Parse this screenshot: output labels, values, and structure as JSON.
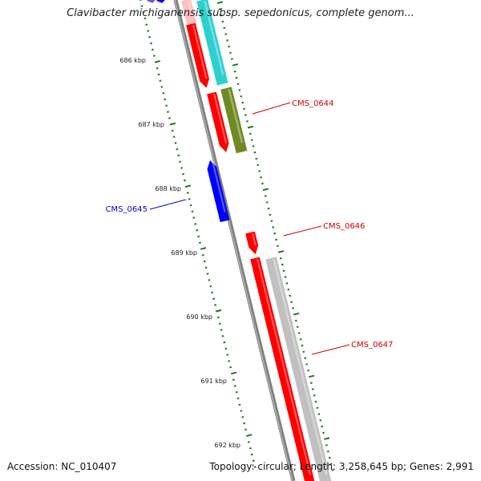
{
  "title": "Clavibacter michiganensis subsp. sepedonicus, complete genom...",
  "footer": {
    "accession": "Accession: NC_010407",
    "topology": "Topology: circular; Length: 3,258,645 bp; Genes: 2,991"
  },
  "scale": {
    "ticks": [
      "686 kbp",
      "687 kbp",
      "688 kbp",
      "689 kbp",
      "690 kbp",
      "691 kbp",
      "692 kbp"
    ]
  },
  "genes": [
    {
      "label": "CMS_0644",
      "color": "#cc0000"
    },
    {
      "label": "CMS_0645",
      "color": "#0000cc"
    },
    {
      "label": "CMS_0646",
      "color": "#cc0000"
    },
    {
      "label": "CMS_0647",
      "color": "#cc0000"
    }
  ],
  "colors": {
    "backbone": "#808080",
    "cds_red": "#ff0000",
    "cds_blue": "#0000ff",
    "cds_cyan": "#2ecfcf",
    "cds_olive": "#6f8a22",
    "cds_grey": "#c0c0c0",
    "cds_pink": "#ffbfbf",
    "tick_green": "#1a7a1a",
    "cds_purple": "#6a5acd"
  }
}
